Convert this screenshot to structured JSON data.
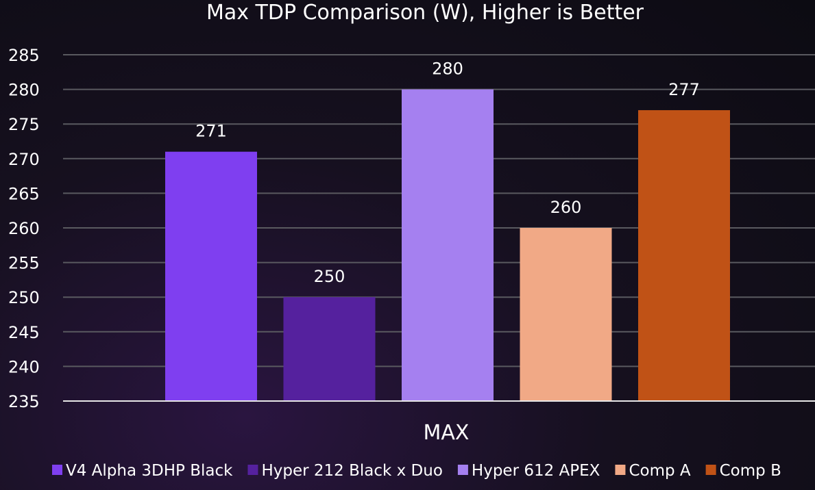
{
  "chart_data": {
    "type": "bar",
    "title": "Max TDP Comparison (W), Higher is Better",
    "xlabel": "",
    "ylabel": "",
    "categories": [
      "MAX"
    ],
    "ylim": [
      235,
      285
    ],
    "yticks": [
      285,
      280,
      275,
      270,
      265,
      260,
      255,
      250,
      245,
      240,
      235
    ],
    "grid": true,
    "legend_position": "bottom",
    "series": [
      {
        "name": "V4 Alpha 3DHP Black",
        "values": [
          271
        ],
        "color": "#7f3ff0"
      },
      {
        "name": "Hyper 212 Black x Duo",
        "values": [
          250
        ],
        "color": "#55219e"
      },
      {
        "name": "Hyper 612 APEX",
        "values": [
          280
        ],
        "color": "#a580f0"
      },
      {
        "name": "Comp A",
        "values": [
          260
        ],
        "color": "#f1a986"
      },
      {
        "name": "Comp B",
        "values": [
          277
        ],
        "color": "#c05216"
      }
    ]
  }
}
